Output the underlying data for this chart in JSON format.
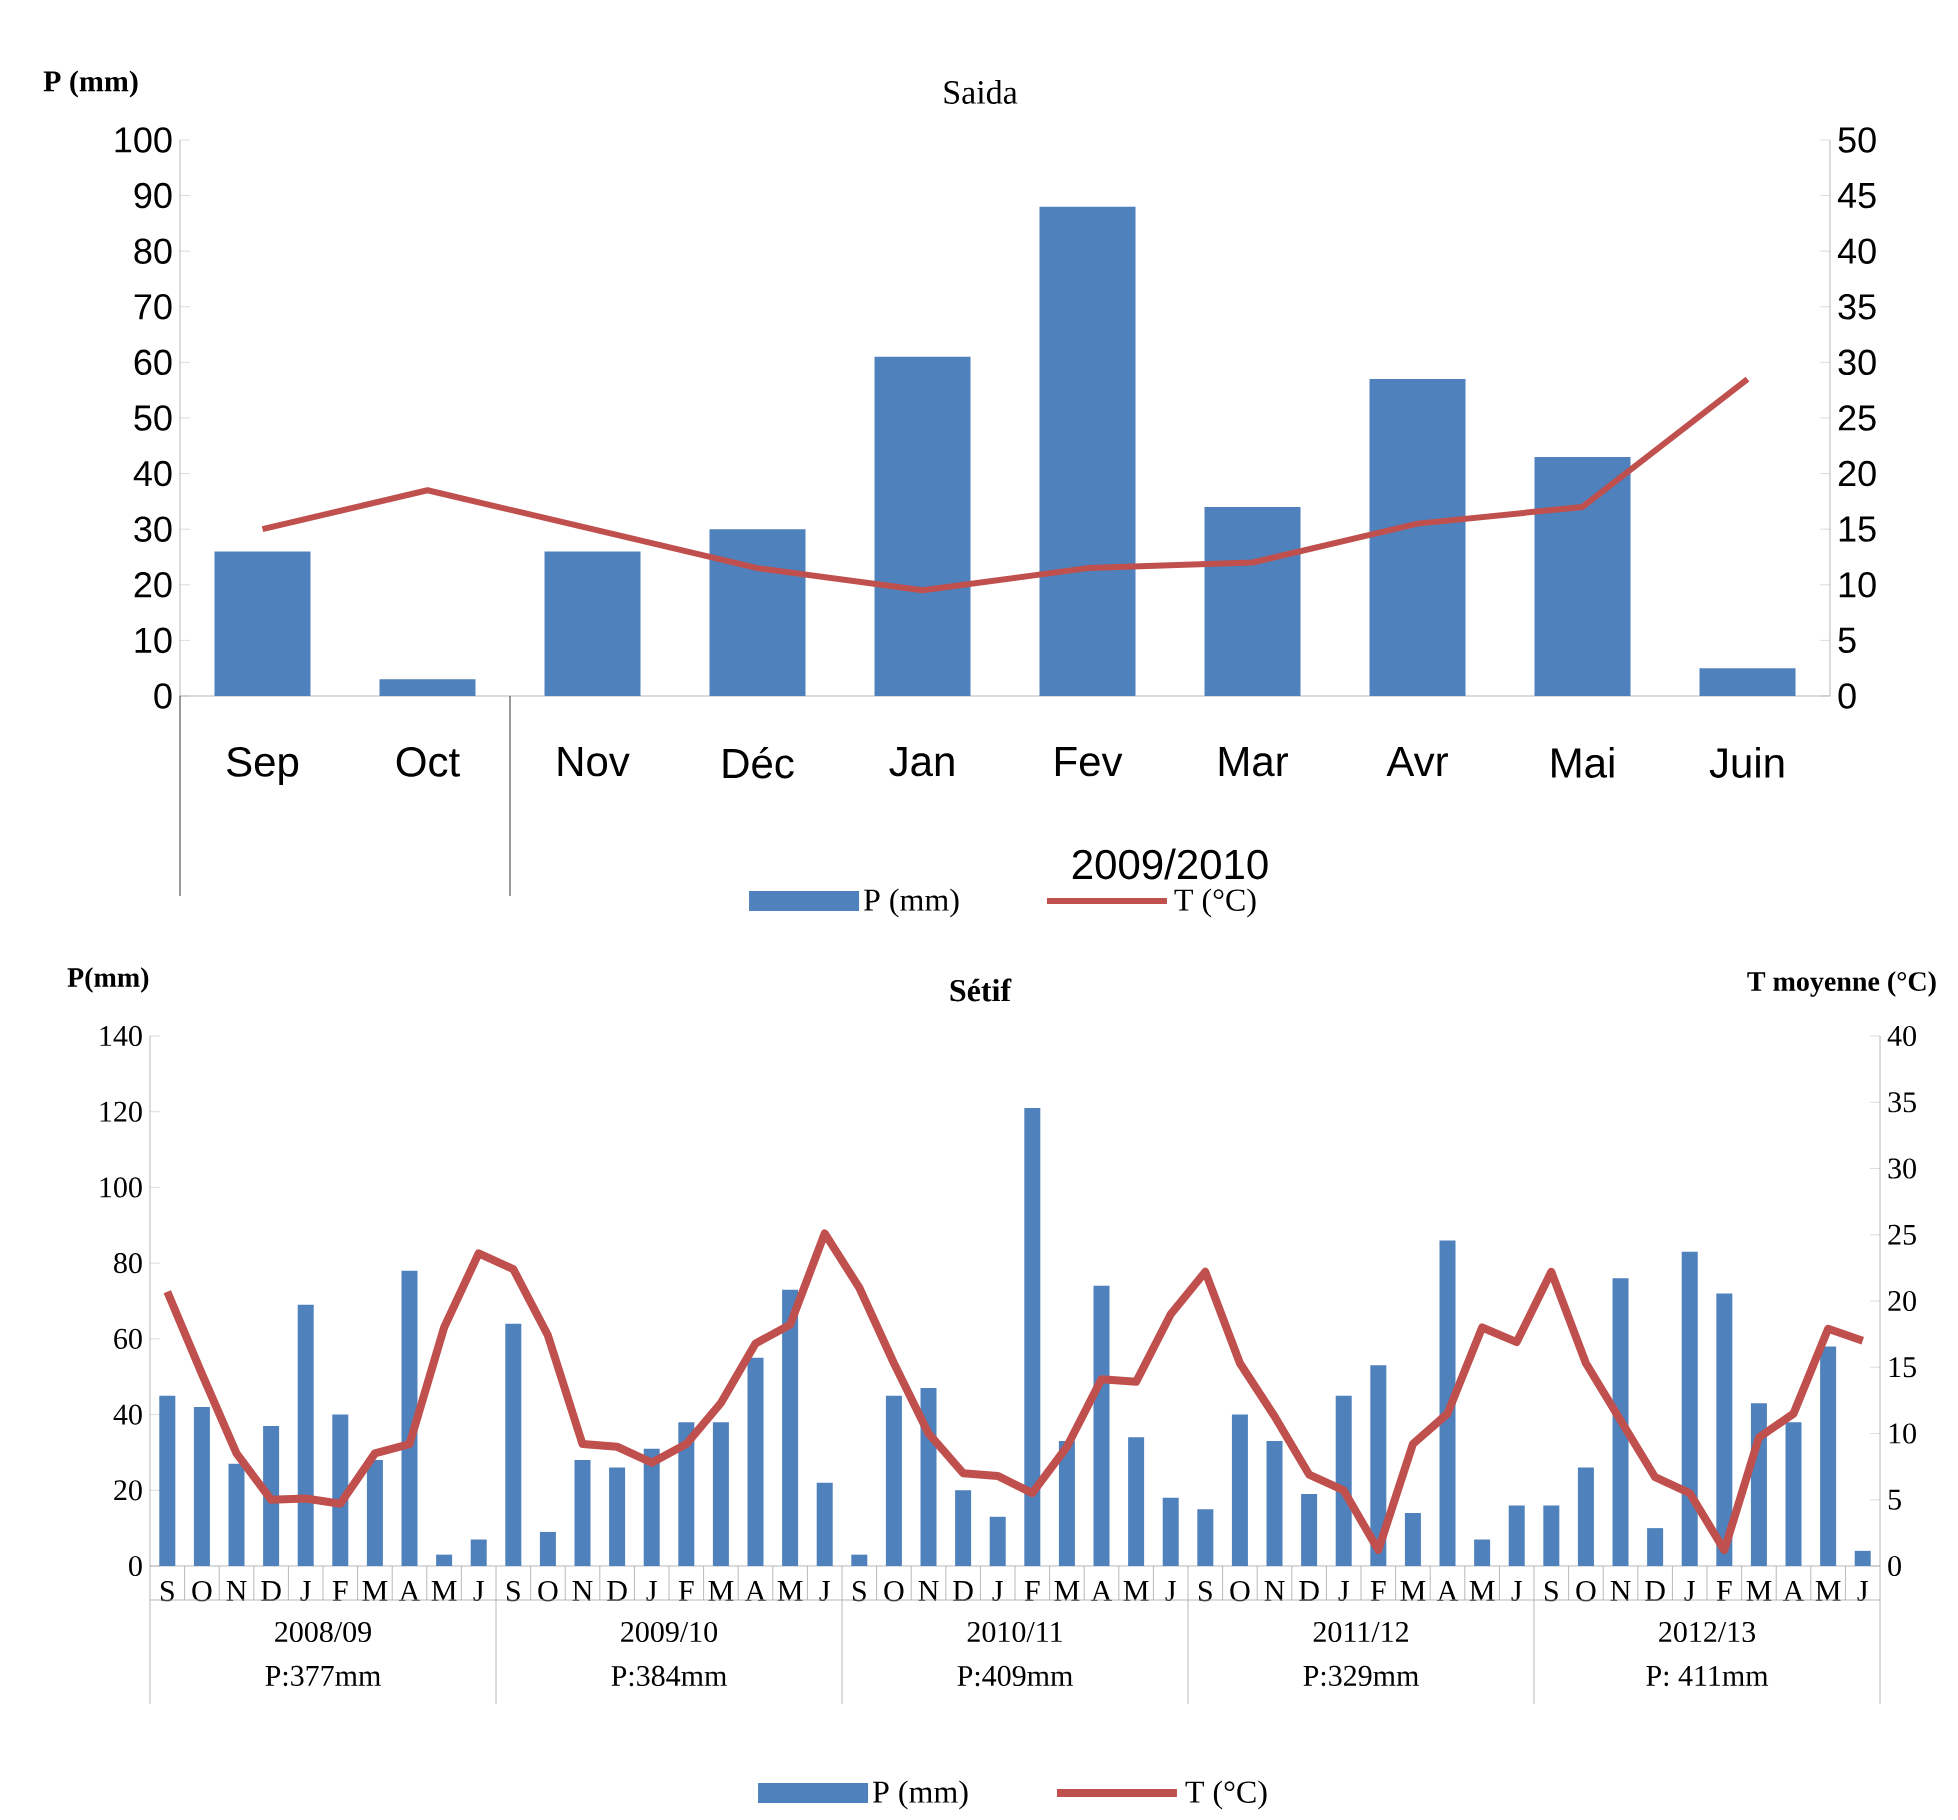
{
  "chart_data": [
    {
      "type": "bar",
      "title": "Saida",
      "ylabel": "P (mm)",
      "categories": [
        "Sep",
        "Oct",
        "Nov",
        "Déc",
        "Jan",
        "Fev",
        "Mar",
        "Avr",
        "Mai",
        "Juin"
      ],
      "series": [
        {
          "name": "P (mm)",
          "color": "#4f81bd",
          "values": [
            26,
            3,
            26,
            30,
            61,
            88,
            34,
            57,
            43,
            5
          ]
        },
        {
          "name": "T (°C)",
          "color": "#c0504d",
          "type": "line",
          "axis": "y2",
          "values": [
            15,
            18.5,
            15,
            11.5,
            9.5,
            11.5,
            12,
            15.5,
            17,
            28.5
          ]
        }
      ],
      "ylim": [
        0,
        100
      ],
      "yticks": [
        0,
        10,
        20,
        30,
        40,
        50,
        60,
        70,
        80,
        90,
        100
      ],
      "y2lim": [
        0,
        50
      ],
      "y2ticks": [
        0,
        5,
        10,
        15,
        20,
        25,
        30,
        35,
        40,
        45,
        50
      ],
      "legend": "bottom",
      "annotations": [
        "2009/2010"
      ]
    },
    {
      "type": "bar",
      "title": "Sétif",
      "ylabel": "P(mm)",
      "y2label": "T moyenne (°C)",
      "categories": [
        "S",
        "O",
        "N",
        "D",
        "J",
        "F",
        "M",
        "A",
        "M",
        "J",
        "S",
        "O",
        "N",
        "D",
        "J",
        "F",
        "M",
        "A",
        "M",
        "J",
        "S",
        "O",
        "N",
        "D",
        "J",
        "F",
        "M",
        "A",
        "M",
        "J",
        "S",
        "O",
        "N",
        "D",
        "J",
        "F",
        "M",
        "A",
        "M",
        "J",
        "S",
        "O",
        "N",
        "D",
        "J",
        "F",
        "M",
        "A",
        "M",
        "J"
      ],
      "series": [
        {
          "name": "P (mm)",
          "color": "#4f81bd",
          "values": [
            45,
            42,
            27,
            37,
            69,
            40,
            28,
            78,
            3,
            7,
            64,
            9,
            28,
            26,
            31,
            38,
            38,
            55,
            73,
            22,
            3,
            45,
            47,
            20,
            13,
            121,
            33,
            74,
            34,
            18,
            15,
            40,
            33,
            19,
            45,
            53,
            14,
            86,
            7,
            16,
            16,
            26,
            76,
            10,
            83,
            72,
            43,
            38,
            58,
            4
          ]
        },
        {
          "name": "T (°C)",
          "color": "#c0504d",
          "type": "line",
          "axis": "y2",
          "values": [
            20.7,
            14.5,
            8.5,
            5,
            5.1,
            4.7,
            8.5,
            9.2,
            18,
            23.6,
            22.4,
            17.4,
            9.2,
            9,
            7.8,
            9.2,
            12.3,
            16.8,
            18.2,
            25.1,
            21,
            15.3,
            10,
            7,
            6.8,
            5.5,
            9,
            14.1,
            13.9,
            19,
            22.2,
            15.3,
            11.3,
            6.9,
            5.7,
            1.2,
            9.2,
            11.5,
            18,
            16.9,
            22.2,
            15.3,
            11,
            6.7,
            5.5,
            1.2,
            9.7,
            11.5,
            17.9,
            17
          ]
        }
      ],
      "ylim": [
        0,
        140
      ],
      "yticks": [
        0,
        20,
        40,
        60,
        80,
        100,
        120,
        140
      ],
      "y2lim": [
        0,
        40
      ],
      "y2ticks": [
        0,
        5,
        10,
        15,
        20,
        25,
        30,
        35,
        40
      ],
      "legend": "bottom",
      "annotations": [
        "2008/09",
        "P:377mm",
        "2009/10",
        "P:384mm",
        "2010/11",
        "P:409mm",
        "2011/12",
        "P:329mm",
        "2012/13",
        "P: 411mm"
      ]
    }
  ]
}
